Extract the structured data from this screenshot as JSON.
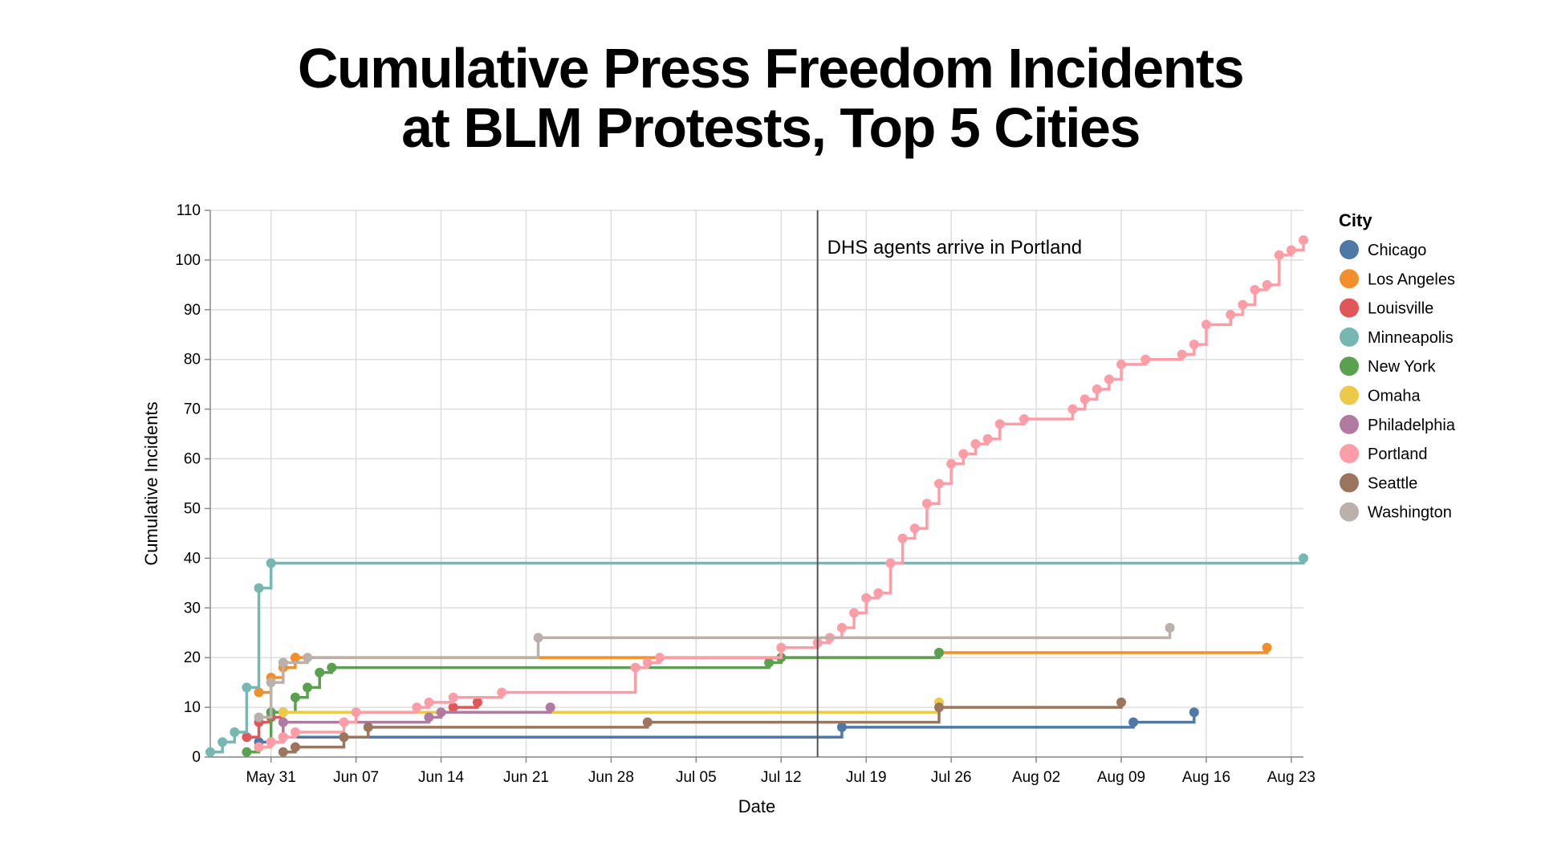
{
  "title_line1": "Cumulative Press Freedom Incidents",
  "title_line2": "at BLM Protests, Top 5 Cities",
  "chart_data": {
    "type": "line",
    "interpolation": "step-after",
    "point_markers": true,
    "title": "Cumulative Press Freedom Incidents at BLM Protests, Top 5 Cities",
    "xlabel": "Date",
    "ylabel": "Cumulative Incidents",
    "xlim": [
      "2020-05-26",
      "2020-08-24"
    ],
    "ylim": [
      0,
      110
    ],
    "x_ticks": [
      "May 31",
      "Jun 07",
      "Jun 14",
      "Jun 21",
      "Jun 28",
      "Jul 05",
      "Jul 12",
      "Jul 19",
      "Jul 26",
      "Aug 02",
      "Aug 09",
      "Aug 16",
      "Aug 23"
    ],
    "x_tick_dates": [
      "2020-05-31",
      "2020-06-07",
      "2020-06-14",
      "2020-06-21",
      "2020-06-28",
      "2020-07-05",
      "2020-07-12",
      "2020-07-19",
      "2020-07-26",
      "2020-08-02",
      "2020-08-09",
      "2020-08-16",
      "2020-08-23"
    ],
    "y_ticks": [
      0,
      10,
      20,
      30,
      40,
      50,
      60,
      70,
      80,
      90,
      100,
      110
    ],
    "grid": true,
    "legend_title": "City",
    "legend_position": "right",
    "annotation": {
      "date": "2020-07-15",
      "text": "DHS agents arrive in Portland"
    },
    "series": [
      {
        "name": "Chicago",
        "color": "#4e79a7",
        "points": [
          [
            "2020-05-30",
            3
          ],
          [
            "2020-06-01",
            4
          ],
          [
            "2020-07-17",
            6
          ],
          [
            "2020-08-10",
            7
          ],
          [
            "2020-08-15",
            9
          ]
        ]
      },
      {
        "name": "Los Angeles",
        "color": "#f28e2b",
        "points": [
          [
            "2020-05-30",
            13
          ],
          [
            "2020-05-31",
            16
          ],
          [
            "2020-06-01",
            18
          ],
          [
            "2020-06-02",
            20
          ],
          [
            "2020-07-25",
            21
          ],
          [
            "2020-08-21",
            22
          ]
        ]
      },
      {
        "name": "Louisville",
        "color": "#e15759",
        "points": [
          [
            "2020-05-29",
            4
          ],
          [
            "2020-05-30",
            7
          ],
          [
            "2020-05-31",
            8
          ],
          [
            "2020-06-01",
            9
          ],
          [
            "2020-06-15",
            10
          ],
          [
            "2020-06-17",
            11
          ]
        ]
      },
      {
        "name": "Minneapolis",
        "color": "#76b7b2",
        "points": [
          [
            "2020-05-26",
            1
          ],
          [
            "2020-05-27",
            3
          ],
          [
            "2020-05-28",
            5
          ],
          [
            "2020-05-29",
            14
          ],
          [
            "2020-05-30",
            34
          ],
          [
            "2020-05-31",
            39
          ],
          [
            "2020-08-24",
            40
          ]
        ]
      },
      {
        "name": "New York",
        "color": "#59a14f",
        "points": [
          [
            "2020-05-29",
            1
          ],
          [
            "2020-05-30",
            2
          ],
          [
            "2020-05-31",
            9
          ],
          [
            "2020-06-02",
            12
          ],
          [
            "2020-06-03",
            14
          ],
          [
            "2020-06-04",
            17
          ],
          [
            "2020-06-05",
            18
          ],
          [
            "2020-07-11",
            19
          ],
          [
            "2020-07-12",
            20
          ],
          [
            "2020-07-25",
            21
          ]
        ]
      },
      {
        "name": "Omaha",
        "color": "#edc948",
        "points": [
          [
            "2020-05-30",
            2
          ],
          [
            "2020-05-31",
            3
          ],
          [
            "2020-06-01",
            9
          ],
          [
            "2020-07-25",
            11
          ]
        ]
      },
      {
        "name": "Philadelphia",
        "color": "#b07aa1",
        "points": [
          [
            "2020-05-31",
            3
          ],
          [
            "2020-06-01",
            7
          ],
          [
            "2020-06-13",
            8
          ],
          [
            "2020-06-14",
            9
          ],
          [
            "2020-06-23",
            10
          ]
        ]
      },
      {
        "name": "Portland",
        "color": "#ff9da7",
        "points": [
          [
            "2020-05-30",
            2
          ],
          [
            "2020-05-31",
            3
          ],
          [
            "2020-06-01",
            4
          ],
          [
            "2020-06-02",
            5
          ],
          [
            "2020-06-06",
            7
          ],
          [
            "2020-06-07",
            9
          ],
          [
            "2020-06-12",
            10
          ],
          [
            "2020-06-13",
            11
          ],
          [
            "2020-06-15",
            12
          ],
          [
            "2020-06-19",
            13
          ],
          [
            "2020-06-30",
            18
          ],
          [
            "2020-07-01",
            19
          ],
          [
            "2020-07-02",
            20
          ],
          [
            "2020-07-12",
            22
          ],
          [
            "2020-07-15",
            23
          ],
          [
            "2020-07-16",
            24
          ],
          [
            "2020-07-17",
            26
          ],
          [
            "2020-07-18",
            29
          ],
          [
            "2020-07-19",
            32
          ],
          [
            "2020-07-20",
            33
          ],
          [
            "2020-07-21",
            39
          ],
          [
            "2020-07-22",
            44
          ],
          [
            "2020-07-23",
            46
          ],
          [
            "2020-07-24",
            51
          ],
          [
            "2020-07-25",
            55
          ],
          [
            "2020-07-26",
            59
          ],
          [
            "2020-07-27",
            61
          ],
          [
            "2020-07-28",
            63
          ],
          [
            "2020-07-29",
            64
          ],
          [
            "2020-07-30",
            67
          ],
          [
            "2020-08-01",
            68
          ],
          [
            "2020-08-05",
            70
          ],
          [
            "2020-08-06",
            72
          ],
          [
            "2020-08-07",
            74
          ],
          [
            "2020-08-08",
            76
          ],
          [
            "2020-08-09",
            79
          ],
          [
            "2020-08-11",
            80
          ],
          [
            "2020-08-14",
            81
          ],
          [
            "2020-08-15",
            83
          ],
          [
            "2020-08-16",
            87
          ],
          [
            "2020-08-18",
            89
          ],
          [
            "2020-08-19",
            91
          ],
          [
            "2020-08-20",
            94
          ],
          [
            "2020-08-21",
            95
          ],
          [
            "2020-08-22",
            101
          ],
          [
            "2020-08-23",
            102
          ],
          [
            "2020-08-24",
            104
          ]
        ]
      },
      {
        "name": "Seattle",
        "color": "#9c755f",
        "points": [
          [
            "2020-06-01",
            1
          ],
          [
            "2020-06-02",
            2
          ],
          [
            "2020-06-06",
            4
          ],
          [
            "2020-06-08",
            6
          ],
          [
            "2020-07-01",
            7
          ],
          [
            "2020-07-25",
            10
          ],
          [
            "2020-08-09",
            11
          ]
        ]
      },
      {
        "name": "Washington",
        "color": "#bab0ac",
        "points": [
          [
            "2020-05-30",
            8
          ],
          [
            "2020-05-31",
            15
          ],
          [
            "2020-06-01",
            19
          ],
          [
            "2020-06-03",
            20
          ],
          [
            "2020-06-22",
            24
          ],
          [
            "2020-08-13",
            26
          ]
        ]
      }
    ]
  }
}
